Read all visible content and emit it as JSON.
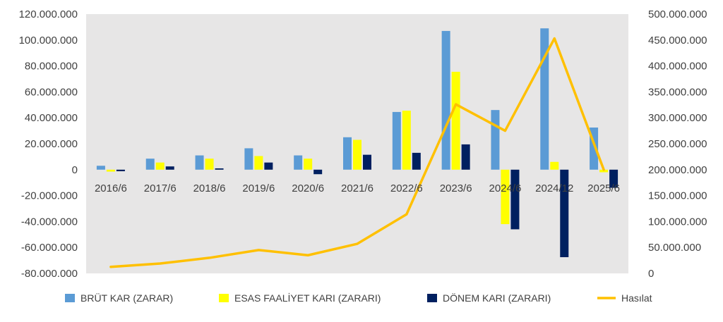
{
  "chart_data": {
    "type": "bar",
    "title": "",
    "categories": [
      "2016/6",
      "2017/6",
      "2018/6",
      "2019/6",
      "2020/6",
      "2021/6",
      "2022/6",
      "2023/6",
      "2024/6",
      "2024/12",
      "2025/6"
    ],
    "series": [
      {
        "name": "BRÜT KAR (ZARAR)",
        "type": "bar",
        "axis": "left",
        "color": "#5B9BD5",
        "values": [
          3000000,
          8500000,
          11000000,
          16500000,
          11000000,
          25000000,
          44500000,
          107000000,
          46000000,
          109000000,
          32500000
        ]
      },
      {
        "name": "ESAS FAALİYET KARI (ZARARI)",
        "type": "bar",
        "axis": "left",
        "color": "#FFFF00",
        "values": [
          -1500000,
          5500000,
          8500000,
          10500000,
          8500000,
          23000000,
          45500000,
          75500000,
          -42000000,
          6000000,
          -2000000
        ]
      },
      {
        "name": "DÖNEM KARI (ZARARI)",
        "type": "bar",
        "axis": "left",
        "color": "#002060",
        "values": [
          -1200000,
          2500000,
          1000000,
          5500000,
          -3500000,
          11500000,
          13000000,
          19500000,
          -46000000,
          -67500000,
          -14000000
        ]
      },
      {
        "name": "Hasılat",
        "type": "line",
        "axis": "right",
        "color": "#FFC000",
        "values": [
          12500000,
          19000000,
          30000000,
          45000000,
          35000000,
          57000000,
          114000000,
          326000000,
          275000000,
          453000000,
          200000000
        ]
      }
    ],
    "y_left": {
      "min": -80000000,
      "max": 120000000,
      "step": 20000000,
      "tick_labels": [
        "-80.000.000",
        "-60.000.000",
        "-40.000.000",
        "-20.000.000",
        "0",
        "20.000.000",
        "40.000.000",
        "60.000.000",
        "80.000.000",
        "100.000.000",
        "120.000.000"
      ]
    },
    "y_right": {
      "min": 0,
      "max": 500000000,
      "step": 50000000,
      "tick_labels": [
        "0",
        "50.000.000",
        "100.000.000",
        "150.000.000",
        "200.000.000",
        "250.000.000",
        "300.000.000",
        "350.000.000",
        "400.000.000",
        "450.000.000",
        "500.000.000"
      ]
    },
    "grid": false,
    "legend_position": "bottom",
    "plot_background": "#E7E6E6"
  }
}
